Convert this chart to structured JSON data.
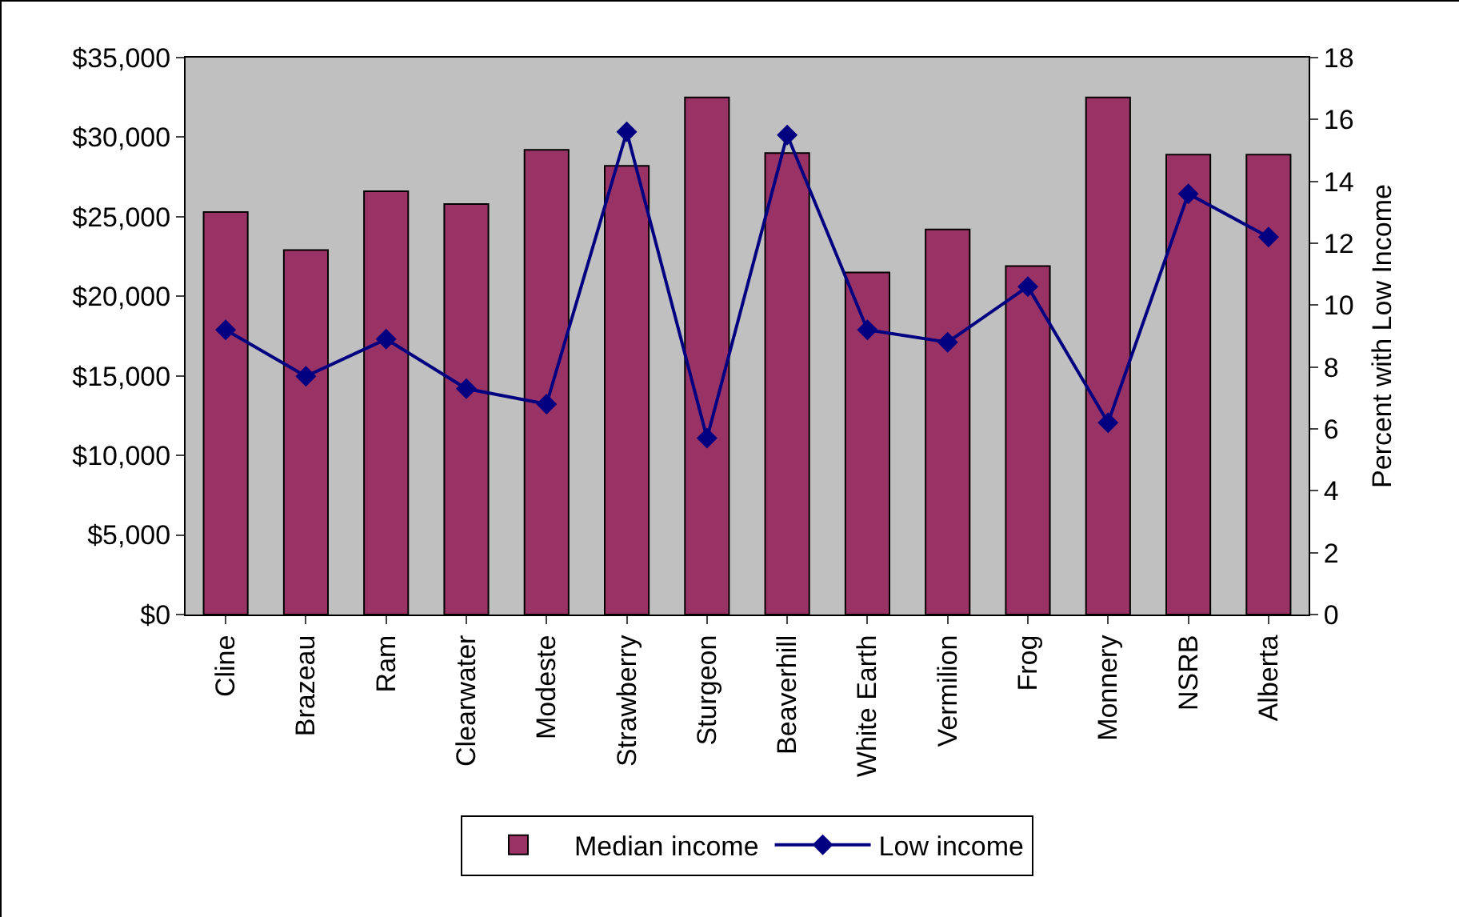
{
  "chart_data": {
    "type": "bar",
    "categories": [
      "Cline",
      "Brazeau",
      "Ram",
      "Clearwater",
      "Modeste",
      "Strawberry",
      "Sturgeon",
      "Beaverhill",
      "White Earth",
      "Vermilion",
      "Frog",
      "Monnery",
      "NSRB",
      "Alberta"
    ],
    "series": [
      {
        "name": "Median income",
        "color": "#993366",
        "values": [
          25300,
          22900,
          26600,
          25800,
          29200,
          28200,
          32500,
          29000,
          21500,
          24200,
          21900,
          32500,
          28900,
          28900
        ]
      },
      {
        "name": "Low income",
        "type": "line",
        "axis": "y2",
        "color": "#000080",
        "marker": "diamond",
        "values": [
          9.2,
          7.7,
          8.9,
          7.3,
          6.8,
          15.6,
          5.7,
          15.5,
          9.2,
          8.8,
          10.6,
          6.2,
          13.6,
          12.2
        ]
      }
    ],
    "ylim": [
      0,
      35000
    ],
    "yticks": [
      {
        "value": 0,
        "label": "$0"
      },
      {
        "value": 5000,
        "label": "$5,000"
      },
      {
        "value": 10000,
        "label": "$10,000"
      },
      {
        "value": 15000,
        "label": "$15,000"
      },
      {
        "value": 20000,
        "label": "$20,000"
      },
      {
        "value": 25000,
        "label": "$25,000"
      },
      {
        "value": 30000,
        "label": "$30,000"
      },
      {
        "value": 35000,
        "label": "$35,000"
      }
    ],
    "y2lim": [
      0,
      18
    ],
    "y2ticks": [
      0,
      2,
      4,
      6,
      8,
      10,
      12,
      14,
      16,
      18
    ],
    "y2label": "Percent with Low Income",
    "grid": false,
    "legend": "bottom"
  }
}
